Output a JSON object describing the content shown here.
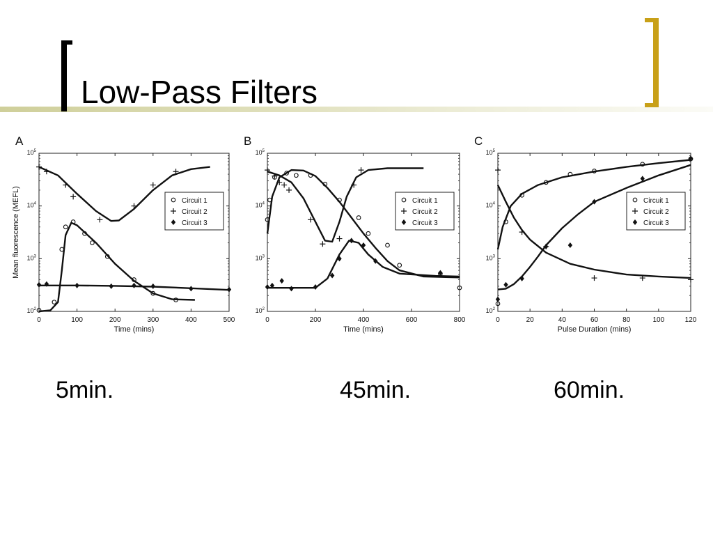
{
  "slide": {
    "title": "Low-Pass Filters",
    "captions": [
      "5min.",
      "45min.",
      "60min."
    ],
    "accent_color": "#c8a018"
  },
  "chart_data": [
    {
      "panel": "A",
      "type": "scatter",
      "xlabel": "Time (mins)",
      "ylabel": "Mean fluorescence (MEFL)",
      "xlim": [
        0,
        500
      ],
      "ylim": [
        100,
        100000
      ],
      "yscale": "log",
      "x_ticks": [
        "0",
        "100",
        "200",
        "300",
        "400",
        "500"
      ],
      "y_tick_values": [
        100,
        1000,
        10000,
        100000
      ],
      "legend": {
        "position": "right",
        "entries": [
          "Circuit 1",
          "Circuit 2",
          "Circuit 3"
        ]
      },
      "series": [
        {
          "name": "Circuit 1",
          "marker": "circle",
          "points": [
            [
              0,
              105
            ],
            [
              40,
              150
            ],
            [
              60,
              1500
            ],
            [
              70,
              4000
            ],
            [
              90,
              5000
            ],
            [
              120,
              3000
            ],
            [
              140,
              2000
            ],
            [
              180,
              1100
            ],
            [
              250,
              400
            ],
            [
              300,
              220
            ],
            [
              360,
              165
            ]
          ],
          "fit": [
            [
              0,
              100
            ],
            [
              30,
              105
            ],
            [
              50,
              150
            ],
            [
              60,
              600
            ],
            [
              70,
              2800
            ],
            [
              85,
              4800
            ],
            [
              100,
              4300
            ],
            [
              150,
              2000
            ],
            [
              200,
              800
            ],
            [
              250,
              380
            ],
            [
              300,
              220
            ],
            [
              350,
              170
            ],
            [
              410,
              165
            ]
          ]
        },
        {
          "name": "Circuit 2",
          "marker": "plus",
          "points": [
            [
              0,
              55000
            ],
            [
              20,
              45000
            ],
            [
              70,
              25000
            ],
            [
              90,
              15000
            ],
            [
              160,
              5500
            ],
            [
              250,
              10000
            ],
            [
              300,
              25000
            ],
            [
              360,
              45000
            ]
          ],
          "fit": [
            [
              0,
              55000
            ],
            [
              50,
              38000
            ],
            [
              100,
              17000
            ],
            [
              150,
              8000
            ],
            [
              190,
              5200
            ],
            [
              210,
              5300
            ],
            [
              250,
              8800
            ],
            [
              300,
              20000
            ],
            [
              350,
              38000
            ],
            [
              400,
              50000
            ],
            [
              450,
              55000
            ]
          ]
        },
        {
          "name": "Circuit 3",
          "marker": "diamond",
          "points": [
            [
              0,
              320
            ],
            [
              20,
              330
            ],
            [
              100,
              310
            ],
            [
              190,
              300
            ],
            [
              250,
              310
            ],
            [
              300,
              300
            ],
            [
              400,
              270
            ],
            [
              500,
              260
            ]
          ],
          "fit": [
            [
              0,
              310
            ],
            [
              100,
              310
            ],
            [
              200,
              305
            ],
            [
              300,
              295
            ],
            [
              400,
              275
            ],
            [
              500,
              255
            ]
          ]
        }
      ]
    },
    {
      "panel": "B",
      "type": "scatter",
      "xlabel": "Time (mins)",
      "ylabel": "",
      "xlim": [
        0,
        800
      ],
      "ylim": [
        100,
        100000
      ],
      "yscale": "log",
      "x_ticks": [
        "0",
        "200",
        "400",
        "600",
        "800"
      ],
      "y_tick_values": [
        100,
        1000,
        10000,
        100000
      ],
      "legend": {
        "position": "right",
        "entries": [
          "Circuit 1",
          "Circuit 2",
          "Circuit 3"
        ]
      },
      "series": [
        {
          "name": "Circuit 1",
          "marker": "circle",
          "points": [
            [
              0,
              5500
            ],
            [
              10,
              13000
            ],
            [
              30,
              35000
            ],
            [
              80,
              42000
            ],
            [
              120,
              38000
            ],
            [
              180,
              38000
            ],
            [
              240,
              26000
            ],
            [
              300,
              13000
            ],
            [
              380,
              6000
            ],
            [
              420,
              3000
            ],
            [
              500,
              1800
            ],
            [
              550,
              750
            ],
            [
              720,
              520
            ],
            [
              800,
              280
            ]
          ],
          "fit": [
            [
              0,
              3000
            ],
            [
              20,
              15000
            ],
            [
              50,
              35000
            ],
            [
              100,
              48000
            ],
            [
              150,
              47000
            ],
            [
              200,
              37000
            ],
            [
              250,
              22000
            ],
            [
              300,
              12000
            ],
            [
              350,
              6000
            ],
            [
              400,
              3000
            ],
            [
              450,
              1600
            ],
            [
              500,
              900
            ],
            [
              550,
              600
            ],
            [
              650,
              460
            ],
            [
              800,
              440
            ]
          ]
        },
        {
          "name": "Circuit 2",
          "marker": "plus",
          "points": [
            [
              0,
              48000
            ],
            [
              30,
              37000
            ],
            [
              50,
              28000
            ],
            [
              70,
              25000
            ],
            [
              90,
              20000
            ],
            [
              180,
              5500
            ],
            [
              230,
              1900
            ],
            [
              300,
              2400
            ],
            [
              360,
              25000
            ],
            [
              390,
              48000
            ]
          ],
          "fit": [
            [
              0,
              45000
            ],
            [
              50,
              38000
            ],
            [
              100,
              28000
            ],
            [
              150,
              14000
            ],
            [
              200,
              5000
            ],
            [
              240,
              2200
            ],
            [
              270,
              2100
            ],
            [
              300,
              5000
            ],
            [
              330,
              15000
            ],
            [
              370,
              35000
            ],
            [
              420,
              48000
            ],
            [
              500,
              52000
            ],
            [
              650,
              52000
            ]
          ]
        },
        {
          "name": "Circuit 3",
          "marker": "diamond",
          "points": [
            [
              0,
              290
            ],
            [
              20,
              310
            ],
            [
              60,
              380
            ],
            [
              100,
              270
            ],
            [
              200,
              290
            ],
            [
              270,
              480
            ],
            [
              300,
              1000
            ],
            [
              350,
              2200
            ],
            [
              400,
              1800
            ],
            [
              450,
              900
            ],
            [
              720,
              540
            ]
          ],
          "fit": [
            [
              0,
              280
            ],
            [
              200,
              280
            ],
            [
              250,
              420
            ],
            [
              300,
              1200
            ],
            [
              340,
              2200
            ],
            [
              380,
              2000
            ],
            [
              420,
              1200
            ],
            [
              480,
              700
            ],
            [
              550,
              520
            ],
            [
              700,
              470
            ],
            [
              800,
              460
            ]
          ]
        }
      ]
    },
    {
      "panel": "C",
      "type": "scatter",
      "xlabel": "Pulse Duration (mins)",
      "ylabel": "",
      "xlim": [
        0,
        120
      ],
      "ylim": [
        100,
        100000
      ],
      "yscale": "log",
      "x_ticks": [
        "0",
        "20",
        "40",
        "60",
        "80",
        "100",
        "120"
      ],
      "y_tick_values": [
        100,
        1000,
        10000,
        100000
      ],
      "legend": {
        "position": "right",
        "entries": [
          "Circuit 1",
          "Circuit 2",
          "Circuit 3"
        ]
      },
      "series": [
        {
          "name": "Circuit 1",
          "marker": "circle",
          "points": [
            [
              0,
              140
            ],
            [
              5,
              5000
            ],
            [
              15,
              16000
            ],
            [
              30,
              28000
            ],
            [
              45,
              40000
            ],
            [
              60,
              46000
            ],
            [
              90,
              62000
            ],
            [
              120,
              78000
            ]
          ],
          "fit": [
            [
              0,
              1500
            ],
            [
              3,
              4000
            ],
            [
              8,
              10000
            ],
            [
              15,
              17000
            ],
            [
              25,
              25000
            ],
            [
              40,
              35000
            ],
            [
              60,
              45000
            ],
            [
              80,
              55000
            ],
            [
              100,
              65000
            ],
            [
              120,
              75000
            ]
          ]
        },
        {
          "name": "Circuit 2",
          "marker": "plus",
          "points": [
            [
              0,
              48000
            ],
            [
              15,
              3200
            ],
            [
              30,
              1700
            ],
            [
              60,
              430
            ],
            [
              90,
              430
            ],
            [
              120,
              400
            ]
          ],
          "fit": [
            [
              0,
              25000
            ],
            [
              5,
              12000
            ],
            [
              10,
              6000
            ],
            [
              15,
              3500
            ],
            [
              20,
              2300
            ],
            [
              30,
              1300
            ],
            [
              45,
              800
            ],
            [
              60,
              620
            ],
            [
              80,
              500
            ],
            [
              100,
              460
            ],
            [
              120,
              430
            ]
          ]
        },
        {
          "name": "Circuit 3",
          "marker": "diamond",
          "points": [
            [
              0,
              170
            ],
            [
              5,
              320
            ],
            [
              15,
              420
            ],
            [
              30,
              1700
            ],
            [
              45,
              1800
            ],
            [
              60,
              12000
            ],
            [
              90,
              33000
            ],
            [
              120,
              80000
            ]
          ],
          "fit": [
            [
              0,
              260
            ],
            [
              5,
              270
            ],
            [
              10,
              330
            ],
            [
              15,
              460
            ],
            [
              20,
              700
            ],
            [
              25,
              1100
            ],
            [
              30,
              1800
            ],
            [
              40,
              3800
            ],
            [
              50,
              7000
            ],
            [
              60,
              12000
            ],
            [
              80,
              22000
            ],
            [
              100,
              38000
            ],
            [
              120,
              60000
            ]
          ]
        }
      ]
    }
  ]
}
